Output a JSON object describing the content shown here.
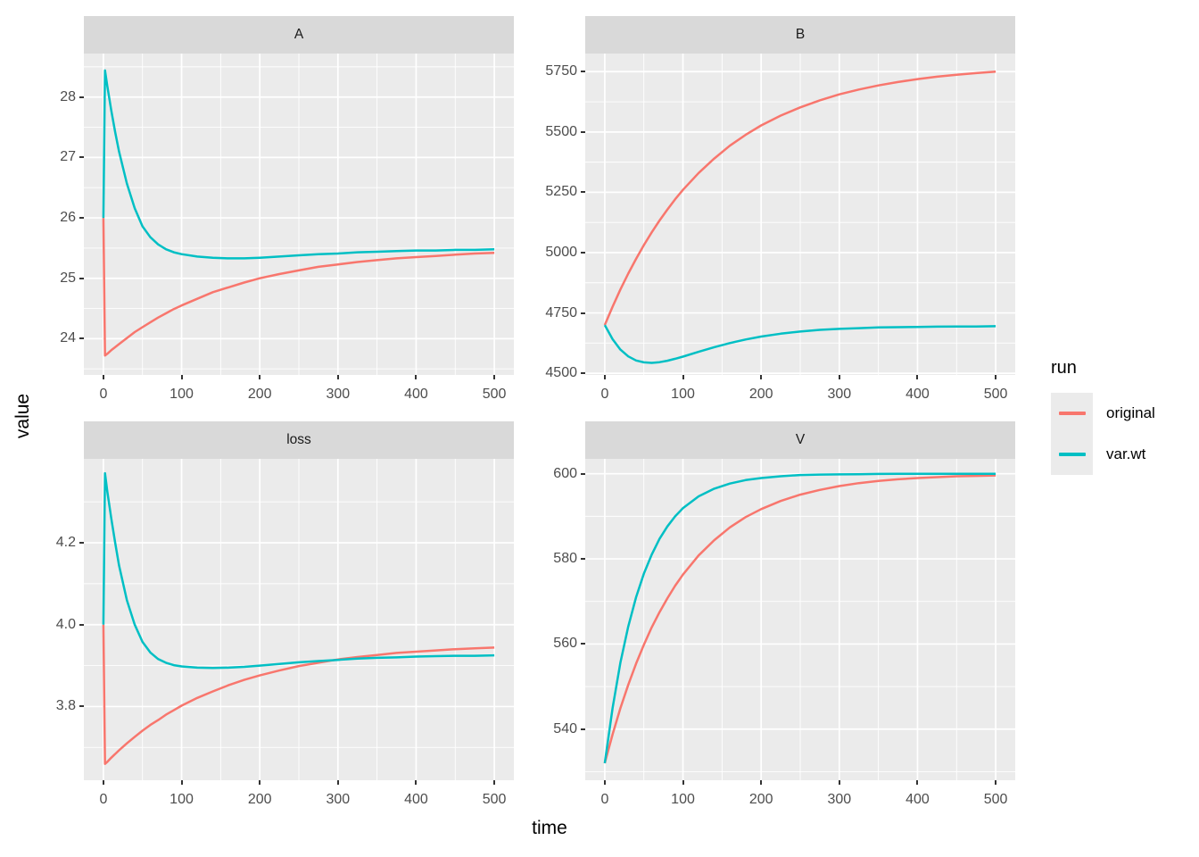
{
  "figure": {
    "xlabel": "time",
    "ylabel": "value",
    "legend": {
      "title": "run",
      "items": [
        {
          "label": "original",
          "color": "#F8766D"
        },
        {
          "label": "var.wt",
          "color": "#00BFC4"
        }
      ]
    },
    "colors": {
      "panel_bg": "#EBEBEB",
      "strip_bg": "#D9D9D9",
      "grid": "#FFFFFF",
      "tick_text": "#4D4D4D",
      "strip_text": "#1A1A1A",
      "tick_mark": "#333333"
    }
  },
  "chart_data": [
    {
      "type": "line",
      "facet": "A",
      "xlim": [
        -25,
        525
      ],
      "ylim": [
        23.4,
        28.72
      ],
      "xticks": [
        0,
        100,
        200,
        300,
        400,
        500
      ],
      "yticks": [
        24,
        25,
        26,
        27,
        28
      ],
      "xminor": [
        50,
        150,
        250,
        350,
        450
      ],
      "yminor": [
        23.5,
        24.5,
        25.5,
        26.5,
        27.5,
        28.5
      ],
      "series": [
        {
          "name": "original",
          "points": [
            [
              0,
              26
            ],
            [
              2,
              23.72
            ],
            [
              5,
              23.75
            ],
            [
              10,
              23.81
            ],
            [
              15,
              23.86
            ],
            [
              20,
              23.91
            ],
            [
              30,
              24.01
            ],
            [
              40,
              24.11
            ],
            [
              50,
              24.19
            ],
            [
              60,
              24.27
            ],
            [
              70,
              24.35
            ],
            [
              80,
              24.42
            ],
            [
              90,
              24.49
            ],
            [
              100,
              24.55
            ],
            [
              120,
              24.66
            ],
            [
              140,
              24.77
            ],
            [
              160,
              24.85
            ],
            [
              180,
              24.93
            ],
            [
              200,
              25.0
            ],
            [
              225,
              25.07
            ],
            [
              250,
              25.13
            ],
            [
              275,
              25.19
            ],
            [
              300,
              25.23
            ],
            [
              325,
              25.27
            ],
            [
              350,
              25.3
            ],
            [
              375,
              25.33
            ],
            [
              400,
              25.35
            ],
            [
              425,
              25.37
            ],
            [
              450,
              25.39
            ],
            [
              475,
              25.41
            ],
            [
              500,
              25.42
            ]
          ]
        },
        {
          "name": "var.wt",
          "points": [
            [
              0,
              26
            ],
            [
              2,
              28.44
            ],
            [
              5,
              28.18
            ],
            [
              10,
              27.78
            ],
            [
              15,
              27.42
            ],
            [
              20,
              27.1
            ],
            [
              30,
              26.57
            ],
            [
              40,
              26.16
            ],
            [
              50,
              25.86
            ],
            [
              60,
              25.68
            ],
            [
              70,
              25.56
            ],
            [
              80,
              25.48
            ],
            [
              90,
              25.43
            ],
            [
              100,
              25.4
            ],
            [
              120,
              25.36
            ],
            [
              140,
              25.34
            ],
            [
              160,
              25.33
            ],
            [
              180,
              25.33
            ],
            [
              200,
              25.34
            ],
            [
              225,
              25.36
            ],
            [
              250,
              25.38
            ],
            [
              275,
              25.4
            ],
            [
              300,
              25.41
            ],
            [
              325,
              25.43
            ],
            [
              350,
              25.44
            ],
            [
              375,
              25.45
            ],
            [
              400,
              25.46
            ],
            [
              425,
              25.46
            ],
            [
              450,
              25.47
            ],
            [
              475,
              25.47
            ],
            [
              500,
              25.48
            ]
          ]
        }
      ]
    },
    {
      "type": "line",
      "facet": "B",
      "xlim": [
        -25,
        525
      ],
      "ylim": [
        4493,
        5825
      ],
      "xticks": [
        0,
        100,
        200,
        300,
        400,
        500
      ],
      "yticks": [
        4500,
        4750,
        5000,
        5250,
        5500,
        5750
      ],
      "xminor": [
        50,
        150,
        250,
        350,
        450
      ],
      "yminor": [
        4625,
        4875,
        5125,
        5375,
        5625
      ],
      "series": [
        {
          "name": "original",
          "points": [
            [
              0,
              4700
            ],
            [
              10,
              4776
            ],
            [
              20,
              4847
            ],
            [
              30,
              4913
            ],
            [
              40,
              4974
            ],
            [
              50,
              5031
            ],
            [
              60,
              5084
            ],
            [
              70,
              5133
            ],
            [
              80,
              5178
            ],
            [
              90,
              5221
            ],
            [
              100,
              5260
            ],
            [
              120,
              5330
            ],
            [
              140,
              5390
            ],
            [
              160,
              5443
            ],
            [
              180,
              5488
            ],
            [
              200,
              5527
            ],
            [
              225,
              5568
            ],
            [
              250,
              5602
            ],
            [
              275,
              5631
            ],
            [
              300,
              5656
            ],
            [
              325,
              5676
            ],
            [
              350,
              5693
            ],
            [
              375,
              5707
            ],
            [
              400,
              5719
            ],
            [
              425,
              5729
            ],
            [
              450,
              5737
            ],
            [
              475,
              5744
            ],
            [
              500,
              5750
            ]
          ]
        },
        {
          "name": "var.wt",
          "points": [
            [
              0,
              4700
            ],
            [
              10,
              4641
            ],
            [
              20,
              4598
            ],
            [
              30,
              4570
            ],
            [
              40,
              4553
            ],
            [
              50,
              4545
            ],
            [
              60,
              4543
            ],
            [
              70,
              4546
            ],
            [
              80,
              4552
            ],
            [
              90,
              4560
            ],
            [
              100,
              4569
            ],
            [
              120,
              4589
            ],
            [
              140,
              4608
            ],
            [
              160,
              4625
            ],
            [
              180,
              4640
            ],
            [
              200,
              4652
            ],
            [
              225,
              4664
            ],
            [
              250,
              4673
            ],
            [
              275,
              4680
            ],
            [
              300,
              4684
            ],
            [
              325,
              4687
            ],
            [
              350,
              4690
            ],
            [
              375,
              4691
            ],
            [
              400,
              4692
            ],
            [
              425,
              4693
            ],
            [
              450,
              4694
            ],
            [
              475,
              4694
            ],
            [
              500,
              4695
            ]
          ]
        }
      ]
    },
    {
      "type": "line",
      "facet": "loss",
      "xlim": [
        -25,
        525
      ],
      "ylim": [
        3.62,
        4.405
      ],
      "xticks": [
        0,
        100,
        200,
        300,
        400,
        500
      ],
      "yticks": [
        3.8,
        4.0,
        4.2
      ],
      "ytick_labels": [
        "3.8",
        "4.0",
        "4.2"
      ],
      "xminor": [
        50,
        150,
        250,
        350,
        450
      ],
      "yminor": [
        3.7,
        3.9,
        4.1,
        4.3
      ],
      "series": [
        {
          "name": "original",
          "points": [
            [
              0,
              4.0
            ],
            [
              2,
              3.66
            ],
            [
              5,
              3.665
            ],
            [
              10,
              3.675
            ],
            [
              15,
              3.684
            ],
            [
              20,
              3.693
            ],
            [
              30,
              3.71
            ],
            [
              40,
              3.726
            ],
            [
              50,
              3.741
            ],
            [
              60,
              3.755
            ],
            [
              70,
              3.767
            ],
            [
              80,
              3.78
            ],
            [
              90,
              3.791
            ],
            [
              100,
              3.802
            ],
            [
              120,
              3.821
            ],
            [
              140,
              3.837
            ],
            [
              160,
              3.852
            ],
            [
              180,
              3.865
            ],
            [
              200,
              3.876
            ],
            [
              225,
              3.888
            ],
            [
              250,
              3.899
            ],
            [
              275,
              3.907
            ],
            [
              300,
              3.915
            ],
            [
              325,
              3.921
            ],
            [
              350,
              3.926
            ],
            [
              375,
              3.931
            ],
            [
              400,
              3.934
            ],
            [
              425,
              3.937
            ],
            [
              450,
              3.94
            ],
            [
              475,
              3.942
            ],
            [
              500,
              3.944
            ]
          ]
        },
        {
          "name": "var.wt",
          "points": [
            [
              0,
              4.0
            ],
            [
              2,
              4.37
            ],
            [
              5,
              4.325
            ],
            [
              10,
              4.26
            ],
            [
              15,
              4.2
            ],
            [
              20,
              4.145
            ],
            [
              30,
              4.06
            ],
            [
              40,
              4.0
            ],
            [
              50,
              3.958
            ],
            [
              60,
              3.932
            ],
            [
              70,
              3.916
            ],
            [
              80,
              3.907
            ],
            [
              90,
              3.901
            ],
            [
              100,
              3.898
            ],
            [
              120,
              3.895
            ],
            [
              140,
              3.894
            ],
            [
              160,
              3.895
            ],
            [
              180,
              3.897
            ],
            [
              200,
              3.9
            ],
            [
              225,
              3.904
            ],
            [
              250,
              3.908
            ],
            [
              275,
              3.911
            ],
            [
              300,
              3.914
            ],
            [
              325,
              3.917
            ],
            [
              350,
              3.919
            ],
            [
              375,
              3.92
            ],
            [
              400,
              3.922
            ],
            [
              425,
              3.923
            ],
            [
              450,
              3.924
            ],
            [
              475,
              3.924
            ],
            [
              500,
              3.925
            ]
          ]
        }
      ]
    },
    {
      "type": "line",
      "facet": "V",
      "xlim": [
        -25,
        525
      ],
      "ylim": [
        528,
        603.5
      ],
      "xticks": [
        0,
        100,
        200,
        300,
        400,
        500
      ],
      "yticks": [
        540,
        560,
        580,
        600
      ],
      "xminor": [
        50,
        150,
        250,
        350,
        450
      ],
      "yminor": [
        530,
        550,
        570,
        590
      ],
      "series": [
        {
          "name": "original",
          "points": [
            [
              0,
              532
            ],
            [
              10,
              538.8
            ],
            [
              20,
              544.9
            ],
            [
              30,
              550.4
            ],
            [
              40,
              555.4
            ],
            [
              50,
              559.8
            ],
            [
              60,
              563.9
            ],
            [
              70,
              567.5
            ],
            [
              80,
              570.7
            ],
            [
              90,
              573.7
            ],
            [
              100,
              576.3
            ],
            [
              120,
              580.8
            ],
            [
              140,
              584.4
            ],
            [
              160,
              587.4
            ],
            [
              180,
              589.8
            ],
            [
              200,
              591.7
            ],
            [
              225,
              593.6
            ],
            [
              250,
              595.1
            ],
            [
              275,
              596.2
            ],
            [
              300,
              597.1
            ],
            [
              325,
              597.8
            ],
            [
              350,
              598.3
            ],
            [
              375,
              598.7
            ],
            [
              400,
              599.0
            ],
            [
              425,
              599.2
            ],
            [
              450,
              599.4
            ],
            [
              475,
              599.5
            ],
            [
              500,
              599.6
            ]
          ]
        },
        {
          "name": "var.wt",
          "points": [
            [
              0,
              532
            ],
            [
              10,
              545.0
            ],
            [
              20,
              555.6
            ],
            [
              30,
              564.1
            ],
            [
              40,
              571.0
            ],
            [
              50,
              576.5
            ],
            [
              60,
              581.0
            ],
            [
              70,
              584.7
            ],
            [
              80,
              587.6
            ],
            [
              90,
              590.0
            ],
            [
              100,
              591.9
            ],
            [
              120,
              594.7
            ],
            [
              140,
              596.5
            ],
            [
              160,
              597.7
            ],
            [
              180,
              598.5
            ],
            [
              200,
              599.0
            ],
            [
              225,
              599.4
            ],
            [
              250,
              599.7
            ],
            [
              275,
              599.8
            ],
            [
              300,
              599.86
            ],
            [
              325,
              599.9
            ],
            [
              350,
              599.95
            ],
            [
              375,
              599.97
            ],
            [
              400,
              600
            ],
            [
              425,
              600
            ],
            [
              450,
              600
            ],
            [
              475,
              600
            ],
            [
              500,
              600
            ]
          ]
        }
      ]
    }
  ]
}
